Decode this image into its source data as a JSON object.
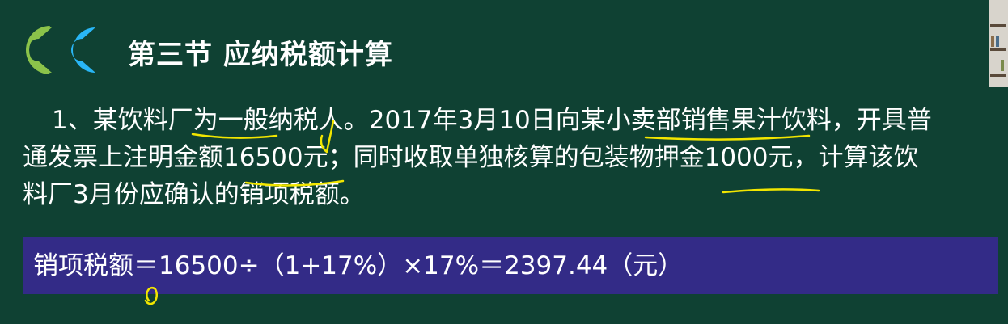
{
  "slide": {
    "title": "第三节 应纳税额计算",
    "paragraph_lines": [
      "1、某饮料厂为一般纳税人。2017年3月10日向某小卖部销售果汁饮料，开具普",
      "通发票上注明金额16500元；同时收取单独核算的包装物押金1000元，计算该饮",
      "料厂3月份应确认的销项税额。"
    ],
    "formula": "销项税额＝16500÷（1+17%）×17%＝2397.44（元）"
  },
  "colors": {
    "background": "#0f4133",
    "formula_band": "#332b87",
    "text": "#ffffff",
    "logo_green": "#8bc34a",
    "logo_cyan": "#29b6f6",
    "annotation_yellow": "#f2e600"
  }
}
